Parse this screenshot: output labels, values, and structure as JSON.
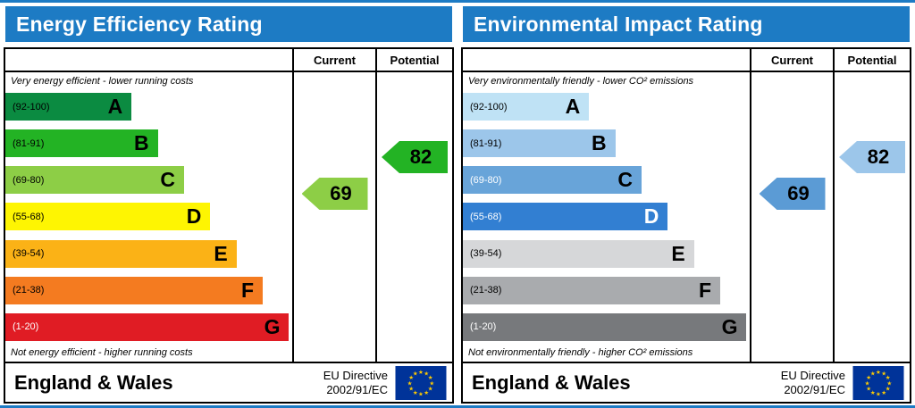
{
  "accent": {
    "header_bg": "#1d7bc4",
    "border": "#000000",
    "flag_bg": "#003399",
    "flag_star": "#ffcc00"
  },
  "chart_data": [
    {
      "type": "bar",
      "title": "Energy Efficiency Rating",
      "categories": [
        "A",
        "B",
        "C",
        "D",
        "E",
        "F",
        "G"
      ],
      "band_ranges": [
        "92-100",
        "81-91",
        "69-80",
        "55-68",
        "39-54",
        "21-38",
        "1-20"
      ],
      "series": [
        {
          "name": "Current",
          "value": 69,
          "band": "C"
        },
        {
          "name": "Potential",
          "value": 82,
          "band": "B"
        }
      ],
      "scale": [
        1,
        100
      ],
      "top_annotation": "Very energy efficient - lower running costs",
      "bottom_annotation": "Not energy efficient - higher running costs"
    },
    {
      "type": "bar",
      "title": "Environmental Impact Rating",
      "categories": [
        "A",
        "B",
        "C",
        "D",
        "E",
        "F",
        "G"
      ],
      "band_ranges": [
        "92-100",
        "81-91",
        "69-80",
        "55-68",
        "39-54",
        "21-38",
        "1-20"
      ],
      "series": [
        {
          "name": "Current",
          "value": 69,
          "band": "C"
        },
        {
          "name": "Potential",
          "value": 82,
          "band": "B"
        }
      ],
      "scale": [
        1,
        100
      ],
      "top_annotation": "Very environmentally friendly - lower CO² emissions",
      "bottom_annotation": "Not environmentally friendly - higher CO² emissions"
    }
  ],
  "panels": [
    {
      "title": "Energy Efficiency Rating",
      "columns": {
        "current": "Current",
        "potential": "Potential"
      },
      "top_note": "Very energy efficient - lower running costs",
      "bottom_note": "Not energy efficient - higher running costs",
      "bands": [
        {
          "letter": "A",
          "range": "(92-100)",
          "color": "#0b8b41",
          "label_color": "#000000",
          "letter_color": "#000000"
        },
        {
          "letter": "B",
          "range": "(81-91)",
          "color": "#23b324",
          "label_color": "#000000",
          "letter_color": "#000000"
        },
        {
          "letter": "C",
          "range": "(69-80)",
          "color": "#8dce46",
          "label_color": "#000000",
          "letter_color": "#000000"
        },
        {
          "letter": "D",
          "range": "(55-68)",
          "color": "#fef502",
          "label_color": "#000000",
          "letter_color": "#000000"
        },
        {
          "letter": "E",
          "range": "(39-54)",
          "color": "#fbb216",
          "label_color": "#000000",
          "letter_color": "#000000"
        },
        {
          "letter": "F",
          "range": "(21-38)",
          "color": "#f47b20",
          "label_color": "#000000",
          "letter_color": "#000000"
        },
        {
          "letter": "G",
          "range": "(1-20)",
          "color": "#e01c24",
          "label_color": "#ffffff",
          "letter_color": "#000000"
        }
      ],
      "current": {
        "value": "69",
        "band": "C",
        "color": "#8dce46"
      },
      "potential": {
        "value": "82",
        "band": "B",
        "color": "#23b324"
      },
      "footer": {
        "region": "England & Wales",
        "directive_line1": "EU Directive",
        "directive_line2": "2002/91/EC"
      }
    },
    {
      "title": "Environmental Impact Rating",
      "columns": {
        "current": "Current",
        "potential": "Potential"
      },
      "top_note": "Very environmentally friendly - lower CO² emissions",
      "bottom_note": "Not environmentally friendly - higher CO² emissions",
      "bands": [
        {
          "letter": "A",
          "range": "(92-100)",
          "color": "#bfe2f5",
          "label_color": "#000000",
          "letter_color": "#000000"
        },
        {
          "letter": "B",
          "range": "(81-91)",
          "color": "#9cc6ea",
          "label_color": "#000000",
          "letter_color": "#000000"
        },
        {
          "letter": "C",
          "range": "(69-80)",
          "color": "#68a4d9",
          "label_color": "#ffffff",
          "letter_color": "#000000"
        },
        {
          "letter": "D",
          "range": "(55-68)",
          "color": "#327fd2",
          "label_color": "#ffffff",
          "letter_color": "#ffffff"
        },
        {
          "letter": "E",
          "range": "(39-54)",
          "color": "#d6d7d9",
          "label_color": "#000000",
          "letter_color": "#000000"
        },
        {
          "letter": "F",
          "range": "(21-38)",
          "color": "#a9abae",
          "label_color": "#000000",
          "letter_color": "#000000"
        },
        {
          "letter": "G",
          "range": "(1-20)",
          "color": "#77797c",
          "label_color": "#ffffff",
          "letter_color": "#000000"
        }
      ],
      "current": {
        "value": "69",
        "band": "C",
        "color": "#5b9bd5"
      },
      "potential": {
        "value": "82",
        "band": "B",
        "color": "#9cc6ea"
      },
      "footer": {
        "region": "England & Wales",
        "directive_line1": "EU Directive",
        "directive_line2": "2002/91/EC"
      }
    }
  ]
}
